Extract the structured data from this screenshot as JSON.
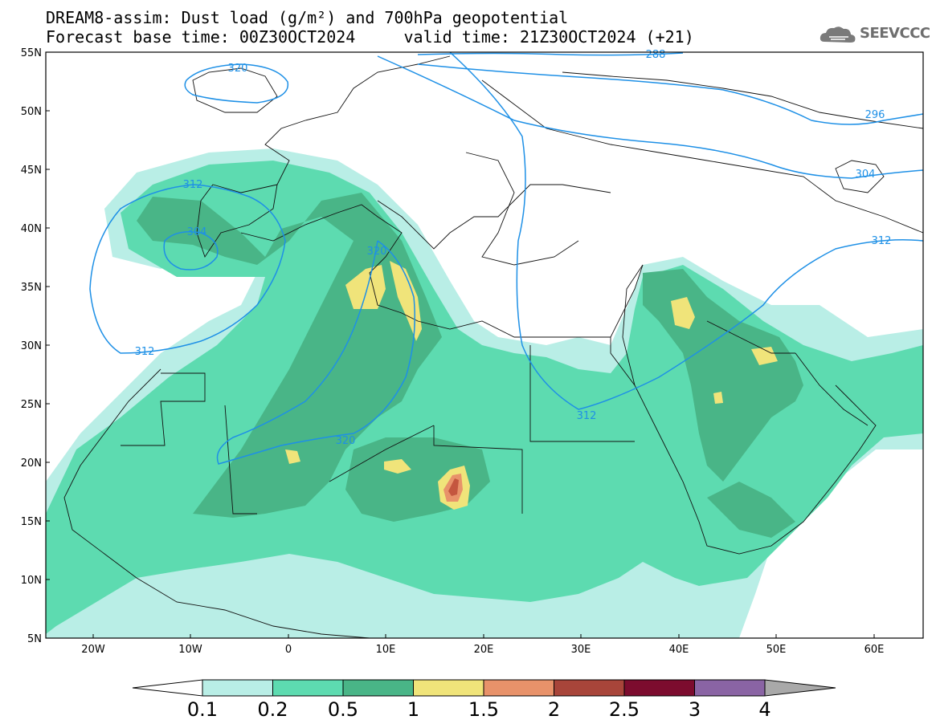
{
  "title": {
    "line1": "DREAM8-assim: Dust load (g/m²) and 700hPa geopotential",
    "line2": "Forecast base time: 00Z30OCT2024     valid time: 21Z30OCT2024 (+21)"
  },
  "logo": {
    "text": "SEEVCCC",
    "icon": "cloud-icon"
  },
  "axes": {
    "lat_labels": [
      "55N",
      "50N",
      "45N",
      "40N",
      "35N",
      "30N",
      "25N",
      "20N",
      "15N",
      "10N",
      "5N"
    ],
    "lon_labels": [
      "20W",
      "10W",
      "0",
      "10E",
      "20E",
      "30E",
      "40E",
      "50E",
      "60E"
    ]
  },
  "contour_labels": [
    "320",
    "288",
    "296",
    "304",
    "312",
    "304",
    "312",
    "320",
    "312",
    "312",
    "320"
  ],
  "colorbar": {
    "labels": [
      "0.1",
      "0.2",
      "0.5",
      "1",
      "1.5",
      "2",
      "2.5",
      "3",
      "4"
    ],
    "colors": [
      "#b9eee6",
      "#5ddbb0",
      "#49b587",
      "#f0e47a",
      "#e8926a",
      "#a8453a",
      "#7c0c2e",
      "#8a64a4",
      "#a9a9a9"
    ]
  },
  "legend_colors": {
    "lev1": "#b9eee6",
    "lev2": "#5ddbb0",
    "lev3": "#49b587",
    "lev4": "#f0e47a",
    "lev5": "#e8926a",
    "lev6": "#c4563f"
  }
}
